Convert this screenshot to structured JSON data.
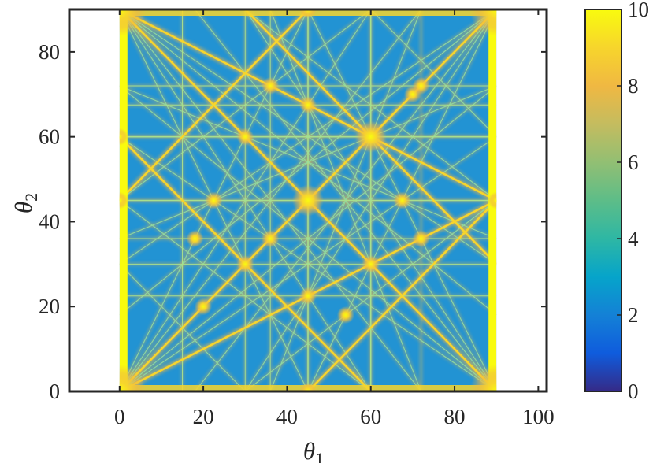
{
  "chart_data": {
    "type": "heatmap",
    "title": "",
    "xlabel": "θ",
    "xlabel_sub": "1",
    "ylabel": "θ",
    "ylabel_sub": "2",
    "xlim": [
      -12,
      102
    ],
    "ylim": [
      0,
      90
    ],
    "data_extent": {
      "x": [
        0,
        90
      ],
      "y": [
        0,
        90
      ]
    },
    "x_ticks": [
      0,
      20,
      40,
      60,
      80,
      100
    ],
    "y_ticks": [
      0,
      20,
      40,
      60,
      80
    ],
    "colorbar": {
      "colormap": "parula",
      "range": [
        0,
        10
      ],
      "ticks": [
        0,
        2,
        4,
        6,
        8,
        10
      ],
      "placement": "right"
    },
    "background_value": 3.3,
    "features": {
      "bright_points": [
        [
          0,
          0
        ],
        [
          90,
          0
        ],
        [
          0,
          90
        ],
        [
          90,
          90
        ],
        [
          45,
          45
        ],
        [
          60,
          60
        ],
        [
          45,
          0
        ],
        [
          45,
          90
        ],
        [
          0,
          45
        ],
        [
          90,
          45
        ],
        [
          0,
          60
        ],
        [
          30,
          60
        ],
        [
          60,
          30
        ],
        [
          36,
          36
        ],
        [
          36,
          72
        ],
        [
          72,
          72
        ],
        [
          72,
          36
        ],
        [
          45,
          22.5
        ],
        [
          45,
          67.5
        ],
        [
          22.5,
          45
        ],
        [
          67.5,
          45
        ],
        [
          30,
          30
        ],
        [
          18,
          36
        ],
        [
          54,
          18
        ],
        [
          20,
          20
        ],
        [
          70,
          70
        ]
      ],
      "bright_lines": [
        [
          [
            0,
            0
          ],
          [
            90,
            90
          ]
        ],
        [
          [
            0,
            90
          ],
          [
            90,
            0
          ]
        ],
        [
          [
            0,
            0
          ],
          [
            90,
            45
          ]
        ],
        [
          [
            0,
            90
          ],
          [
            90,
            45
          ]
        ],
        [
          [
            0,
            45
          ],
          [
            45,
            90
          ]
        ],
        [
          [
            45,
            0
          ],
          [
            90,
            45
          ]
        ],
        [
          [
            0,
            60
          ],
          [
            60,
            0
          ]
        ],
        [
          [
            30,
            90
          ],
          [
            90,
            30
          ]
        ]
      ],
      "faint_lines": [
        [
          [
            0,
            0
          ],
          [
            45,
            90
          ]
        ],
        [
          [
            45,
            0
          ],
          [
            90,
            90
          ]
        ],
        [
          [
            0,
            90
          ],
          [
            45,
            0
          ]
        ],
        [
          [
            45,
            90
          ],
          [
            90,
            0
          ]
        ],
        [
          [
            0,
            0
          ],
          [
            90,
            60
          ]
        ],
        [
          [
            0,
            60
          ],
          [
            90,
            0
          ]
        ],
        [
          [
            0,
            30
          ],
          [
            90,
            90
          ]
        ],
        [
          [
            0,
            90
          ],
          [
            90,
            30
          ]
        ],
        [
          [
            0,
            0
          ],
          [
            60,
            90
          ]
        ],
        [
          [
            30,
            0
          ],
          [
            90,
            90
          ]
        ],
        [
          [
            60,
            0
          ],
          [
            0,
            90
          ]
        ],
        [
          [
            30,
            90
          ],
          [
            90,
            0
          ]
        ],
        [
          [
            0,
            0
          ],
          [
            90,
            72
          ]
        ],
        [
          [
            0,
            72
          ],
          [
            90,
            0
          ]
        ],
        [
          [
            0,
            18
          ],
          [
            90,
            90
          ]
        ],
        [
          [
            0,
            90
          ],
          [
            90,
            18
          ]
        ],
        [
          [
            0,
            0
          ],
          [
            72,
            90
          ]
        ],
        [
          [
            18,
            0
          ],
          [
            90,
            90
          ]
        ],
        [
          [
            72,
            0
          ],
          [
            0,
            90
          ]
        ],
        [
          [
            18,
            90
          ],
          [
            90,
            0
          ]
        ],
        [
          [
            0,
            36
          ],
          [
            90,
            72
          ]
        ],
        [
          [
            0,
            72
          ],
          [
            90,
            36
          ]
        ],
        [
          [
            36,
            0
          ],
          [
            72,
            90
          ]
        ],
        [
          [
            72,
            0
          ],
          [
            36,
            90
          ]
        ],
        [
          [
            0,
            45
          ],
          [
            60,
            90
          ]
        ],
        [
          [
            0,
            45
          ],
          [
            60,
            0
          ]
        ],
        [
          [
            30,
            0
          ],
          [
            90,
            45
          ]
        ],
        [
          [
            30,
            90
          ],
          [
            90,
            45
          ]
        ],
        [
          [
            0,
            30
          ],
          [
            30,
            0
          ]
        ],
        [
          [
            60,
            90
          ],
          [
            90,
            60
          ]
        ]
      ],
      "vertical_lines": [
        45,
        60,
        30,
        15,
        72,
        36
      ],
      "horizontal_lines": [
        60,
        45,
        30,
        22.5,
        67.5,
        36,
        72
      ]
    }
  }
}
